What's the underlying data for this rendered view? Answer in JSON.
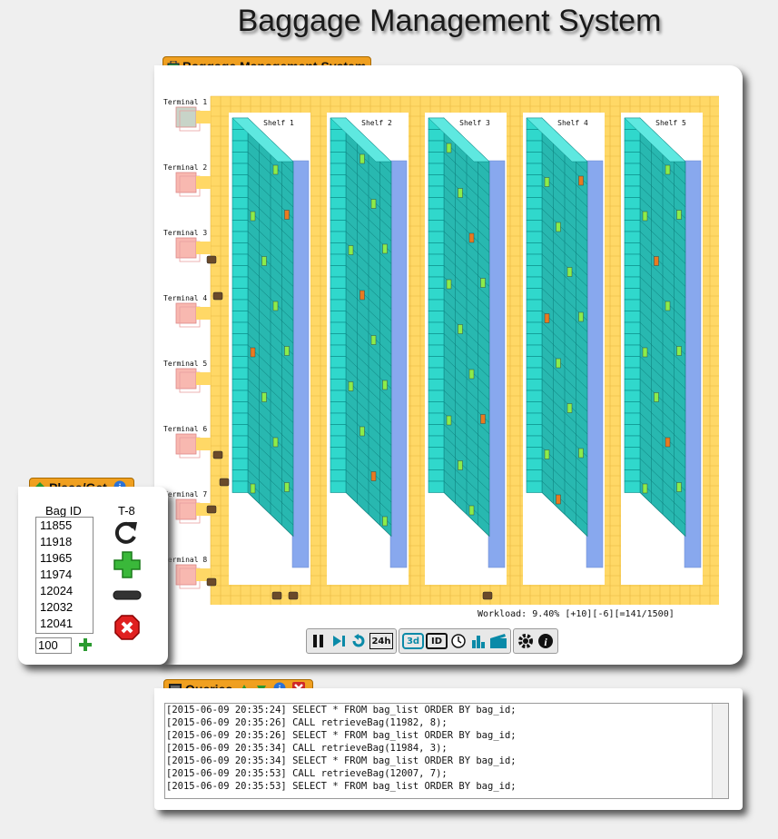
{
  "page_title": "Baggage Management System",
  "main_window": {
    "title": "Baggage Management System",
    "terminals": [
      "Terminal 1",
      "Terminal 2",
      "Terminal 3",
      "Terminal 4",
      "Terminal 5",
      "Terminal 6",
      "Terminal 7",
      "Terminal 8"
    ],
    "shelves": [
      "Shelf 1",
      "Shelf 2",
      "Shelf 3",
      "Shelf 4",
      "Shelf 5"
    ],
    "workload": "Workload: 9.40% [+10][-6][=141/1500]",
    "toolbar": {
      "pause": "pause-icon",
      "step": "step-forward-icon",
      "reset_24h": "24h",
      "view_3d": "3d",
      "id": "ID",
      "clock": "clock-icon",
      "stats": "bar-chart-icon",
      "film": "film-icon",
      "settings": "gear-icon",
      "info": "info-icon"
    }
  },
  "place_get": {
    "title": "Place/Get",
    "bag_id_header": "Bag ID",
    "terminal_header": "T-8",
    "bag_ids": [
      "11855",
      "11918",
      "11965",
      "11974",
      "12024",
      "12032",
      "12041"
    ],
    "quantity": "100"
  },
  "queries": {
    "title": "Queries",
    "lines": [
      "[2015-06-09 20:35:24] SELECT * FROM bag_list ORDER BY bag_id;",
      "[2015-06-09 20:35:26] CALL retrieveBag(11982, 8);",
      "[2015-06-09 20:35:26] SELECT * FROM bag_list ORDER BY bag_id;",
      "[2015-06-09 20:35:34] CALL retrieveBag(11984, 3);",
      "[2015-06-09 20:35:34] SELECT * FROM bag_list ORDER BY bag_id;",
      "[2015-06-09 20:35:53] CALL retrieveBag(12007, 7);",
      "[2015-06-09 20:35:53] SELECT * FROM bag_list ORDER BY bag_id;"
    ]
  },
  "colors": {
    "accent": "#f0a020",
    "conveyor": "#ffd866",
    "shelf_front": "#20c8c0",
    "shelf_back": "#88a8ee",
    "terminal": "#f8b8b0"
  }
}
